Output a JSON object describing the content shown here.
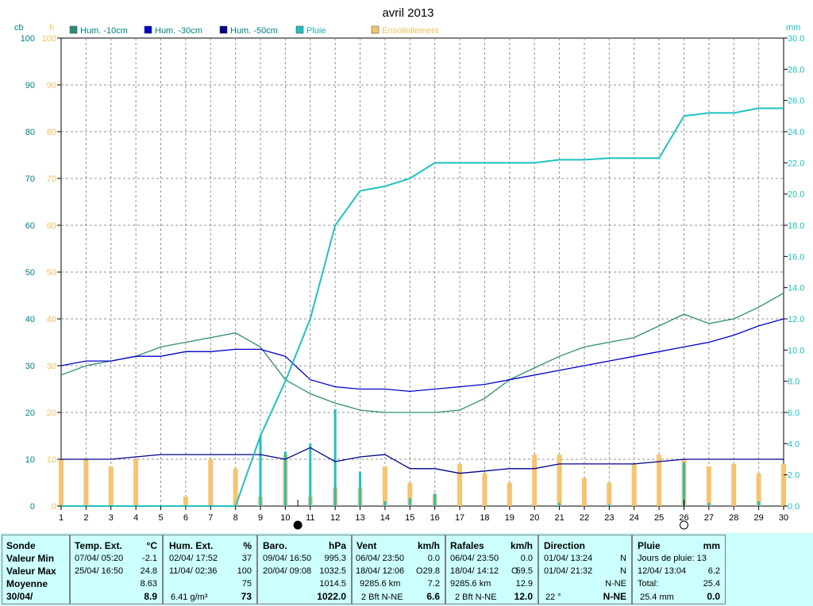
{
  "chart_data": {
    "type": "line",
    "title": "avril 2013",
    "x": [
      1,
      2,
      3,
      4,
      5,
      6,
      7,
      8,
      9,
      10,
      11,
      12,
      13,
      14,
      15,
      16,
      17,
      18,
      19,
      20,
      21,
      22,
      23,
      24,
      25,
      26,
      27,
      28,
      29,
      30
    ],
    "xlim": [
      1,
      30
    ],
    "axes": {
      "left": {
        "unit": "cb",
        "range": [
          0,
          100
        ],
        "ticks": [
          0,
          10,
          20,
          30,
          40,
          50,
          60,
          70,
          80,
          90,
          100
        ]
      },
      "hours": {
        "unit": "h",
        "range": [
          0,
          100
        ]
      },
      "right": {
        "unit": "mm",
        "range": [
          0,
          30
        ],
        "ticks": [
          "0.0",
          "2.0",
          "4.0",
          "6.0",
          "8.0",
          "10.0",
          "12.0",
          "14.0",
          "16.0",
          "18.0",
          "20.0",
          "22.0",
          "24.0",
          "26.0",
          "28.0",
          "30.0"
        ]
      }
    },
    "grid": true,
    "legend_position": "top",
    "series": [
      {
        "name": "Hum. -10cm",
        "color": "#2e8b7a",
        "axis": "left",
        "kind": "line",
        "values": [
          28,
          30,
          31,
          32,
          34,
          35,
          36,
          37,
          34,
          27,
          24,
          22,
          20.5,
          20,
          20,
          20,
          20.5,
          23,
          27,
          29.5,
          32,
          34,
          35,
          36,
          38.5,
          41,
          39,
          40,
          42.5,
          45.5
        ]
      },
      {
        "name": "Hum. -30cm",
        "color": "#0000cc",
        "axis": "left",
        "kind": "line",
        "values": [
          30,
          31,
          31,
          32,
          32,
          33,
          33,
          33.5,
          33.5,
          32,
          27,
          25.5,
          25,
          25,
          24.5,
          25,
          25.5,
          26,
          27,
          28,
          29,
          30,
          31,
          32,
          33,
          34,
          35,
          36.5,
          38.5,
          40
        ]
      },
      {
        "name": "Hum. -50cm",
        "color": "#00008b",
        "axis": "left",
        "kind": "line",
        "values": [
          10,
          10,
          10,
          10.5,
          11,
          11,
          11,
          11,
          11,
          10,
          12.5,
          9.5,
          10.5,
          11,
          8,
          8,
          7,
          7.5,
          8,
          8,
          9,
          9,
          9,
          9,
          9.5,
          10,
          10,
          10,
          10,
          10
        ]
      },
      {
        "name": "Pluie",
        "color": "#20c0c0",
        "axis": "right",
        "kind": "line+bar",
        "values": [
          0,
          0,
          0,
          0,
          0,
          0,
          0,
          0,
          4.5,
          8,
          12,
          18,
          20.2,
          20.5,
          21,
          22,
          22,
          22,
          22,
          22,
          22.2,
          22.2,
          22.3,
          22.3,
          22.3,
          25,
          25.2,
          25.2,
          25.5,
          25.5
        ],
        "daily": [
          0,
          0,
          0,
          0,
          0,
          0,
          0,
          0,
          4.5,
          3.5,
          4,
          6.2,
          2.2,
          0.3,
          0.5,
          0.8,
          0,
          0,
          0,
          0,
          0.2,
          0,
          0.1,
          0,
          0,
          2.8,
          0.2,
          0,
          0.3,
          0
        ]
      },
      {
        "name": "Ensoleillement",
        "color": "#f5c470",
        "axis": "hours",
        "kind": "bar",
        "values": [
          10,
          10,
          8.5,
          10,
          0,
          2,
          10,
          8,
          2,
          11,
          2,
          4,
          4,
          8.5,
          5,
          2.5,
          9,
          7,
          5,
          11,
          11,
          6,
          5,
          9,
          11,
          10,
          8.5,
          9,
          7,
          9
        ]
      }
    ],
    "markers": [
      {
        "day": 10.5,
        "symbol": "new-moon"
      },
      {
        "day": 26,
        "symbol": "full-moon"
      }
    ]
  },
  "panel": {
    "sonde": {
      "header": "Sonde",
      "rows": [
        "Valeur Min",
        "Valeur Max",
        "Moyenne",
        "30/04/"
      ]
    },
    "temp": {
      "header": "Temp. Ext.",
      "unit": "°C",
      "min_date": "07/04/  05:20",
      "min_val": "-2.1",
      "max_date": "25/04/  16:50",
      "max_val": "24.8",
      "avg": "8.63",
      "current": "8.9"
    },
    "hum": {
      "header": "Hum. Ext.",
      "unit": "%",
      "min_date": "02/04/  17:52",
      "min_val": "37",
      "max_date": "11/04/  02:36",
      "max_val": "100",
      "avg": "75",
      "abs": "6.41 g/m³",
      "current": "73"
    },
    "baro": {
      "header": "Baro.",
      "unit": "hPa",
      "min_date": "09/04/  16:50",
      "min_val": "995.3",
      "max_date": "20/04/  09:08",
      "max_val": "1032.5",
      "avg": "1014.5",
      "current": "1022.0"
    },
    "vent": {
      "header": "Vent",
      "unit": "km/h",
      "min_date": "06/04/  23:50",
      "min_val": "0.0",
      "max_date": "18/04/  12:06",
      "max_dir": "O",
      "max_val": "29.8",
      "dist": "9285.6 km",
      "avg": "7.2",
      "bft": "2 Bft N-NE",
      "current": "6.6"
    },
    "rafales": {
      "header": "Rafales",
      "unit": "km/h",
      "min_date": "06/04/  23:50",
      "min_val": "0.0",
      "max_date": "18/04/  14:12",
      "max_dir": "O",
      "max_val": "59.5",
      "dist": "9285.6 km",
      "avg": "12.9",
      "bft": "2 Bft N-NE",
      "current": "12.0"
    },
    "direction": {
      "header": "Direction",
      "row1_date": "01/04/  13:24",
      "row1_val": "N",
      "row2_date": "01/04/  21:32",
      "row2_val": "N",
      "avg": "N-NE",
      "deg": "22 °",
      "current": "N-NE"
    },
    "pluie": {
      "header": "Pluie",
      "unit": "mm",
      "days": "Jours de pluie: 13",
      "max_date": "12/04/  13:04",
      "max_val": "6.2",
      "total_label": "Total:",
      "total_val": "25.4",
      "month": "25.4 mm",
      "current": "0.0"
    }
  }
}
